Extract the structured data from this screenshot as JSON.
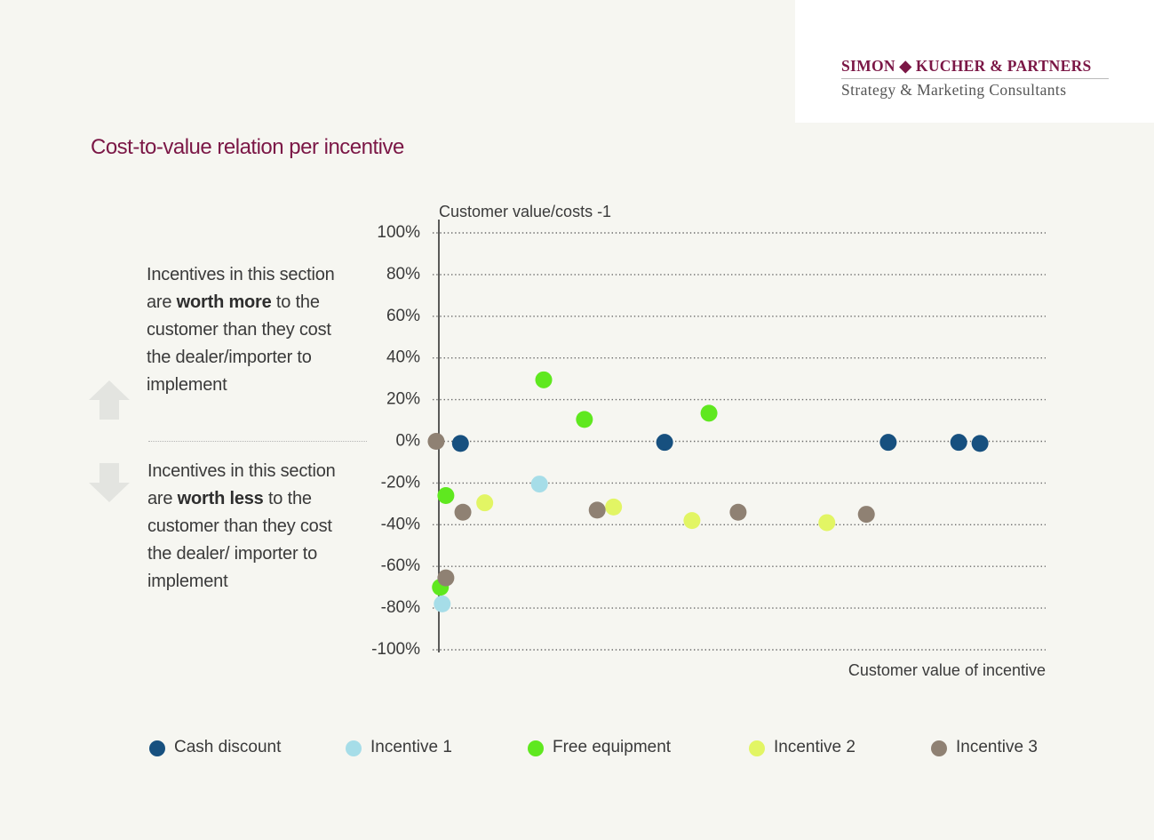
{
  "brand": {
    "name": "SIMON ◆ KUCHER & PARTNERS",
    "tagline": "Strategy & Marketing Consultants"
  },
  "page": {
    "title": "Cost-to-value relation per incentive"
  },
  "annotations": {
    "upper": {
      "pre": "Incentives in this section are ",
      "bold": "worth more",
      "post": " to the customer than they cost the dealer/importer to implement",
      "icon": "arrow-up-icon"
    },
    "lower": {
      "pre": "Incentives in this section are ",
      "bold": "worth less",
      "post": " to the customer than they cost the dealer/ importer to implement",
      "icon": "arrow-down-icon"
    }
  },
  "chart_data": {
    "type": "scatter",
    "title": "",
    "ylabel": "Customer value/costs -1",
    "xlabel": "Customer value of incentive",
    "ylim": [
      -100,
      100
    ],
    "y_ticks": [
      100,
      80,
      60,
      40,
      20,
      0,
      -20,
      -40,
      -60,
      -80,
      -100
    ],
    "y_tick_labels": [
      "100%",
      "80%",
      "60%",
      "40%",
      "20%",
      "0%",
      "-20%",
      "-40%",
      "-60%",
      "-80%",
      "-100%"
    ],
    "xlim": [
      0,
      100
    ],
    "grid": "horizontal-dotted",
    "legend_position": "bottom",
    "series": [
      {
        "name": "Cash discount",
        "color": "#17507f",
        "points": [
          [
            3.7,
            -1
          ],
          [
            37.3,
            -0.5
          ],
          [
            74.1,
            -0.5
          ],
          [
            85.7,
            -0.5
          ],
          [
            89.2,
            -1
          ]
        ]
      },
      {
        "name": "Incentive 1",
        "color": "#a6dde8",
        "points": [
          [
            16.7,
            -20.5
          ],
          [
            0.7,
            -78
          ]
        ]
      },
      {
        "name": "Free equipment",
        "color": "#5fe81f",
        "points": [
          [
            17.4,
            29.5
          ],
          [
            24.1,
            10.5
          ],
          [
            44.6,
            13.5
          ],
          [
            1.3,
            -26
          ],
          [
            0.4,
            -70
          ]
        ]
      },
      {
        "name": "Incentive 2",
        "color": "#e2f564",
        "points": [
          [
            7.7,
            -29.5
          ],
          [
            28.9,
            -31.5
          ],
          [
            41.8,
            -38
          ],
          [
            64.0,
            -39
          ]
        ]
      },
      {
        "name": "Incentive 3",
        "color": "#8f8173",
        "points": [
          [
            -0.3,
            0
          ],
          [
            4.1,
            -34
          ],
          [
            26.2,
            -33
          ],
          [
            49.4,
            -34
          ],
          [
            70.5,
            -35
          ],
          [
            1.3,
            -65.5
          ]
        ]
      }
    ]
  }
}
